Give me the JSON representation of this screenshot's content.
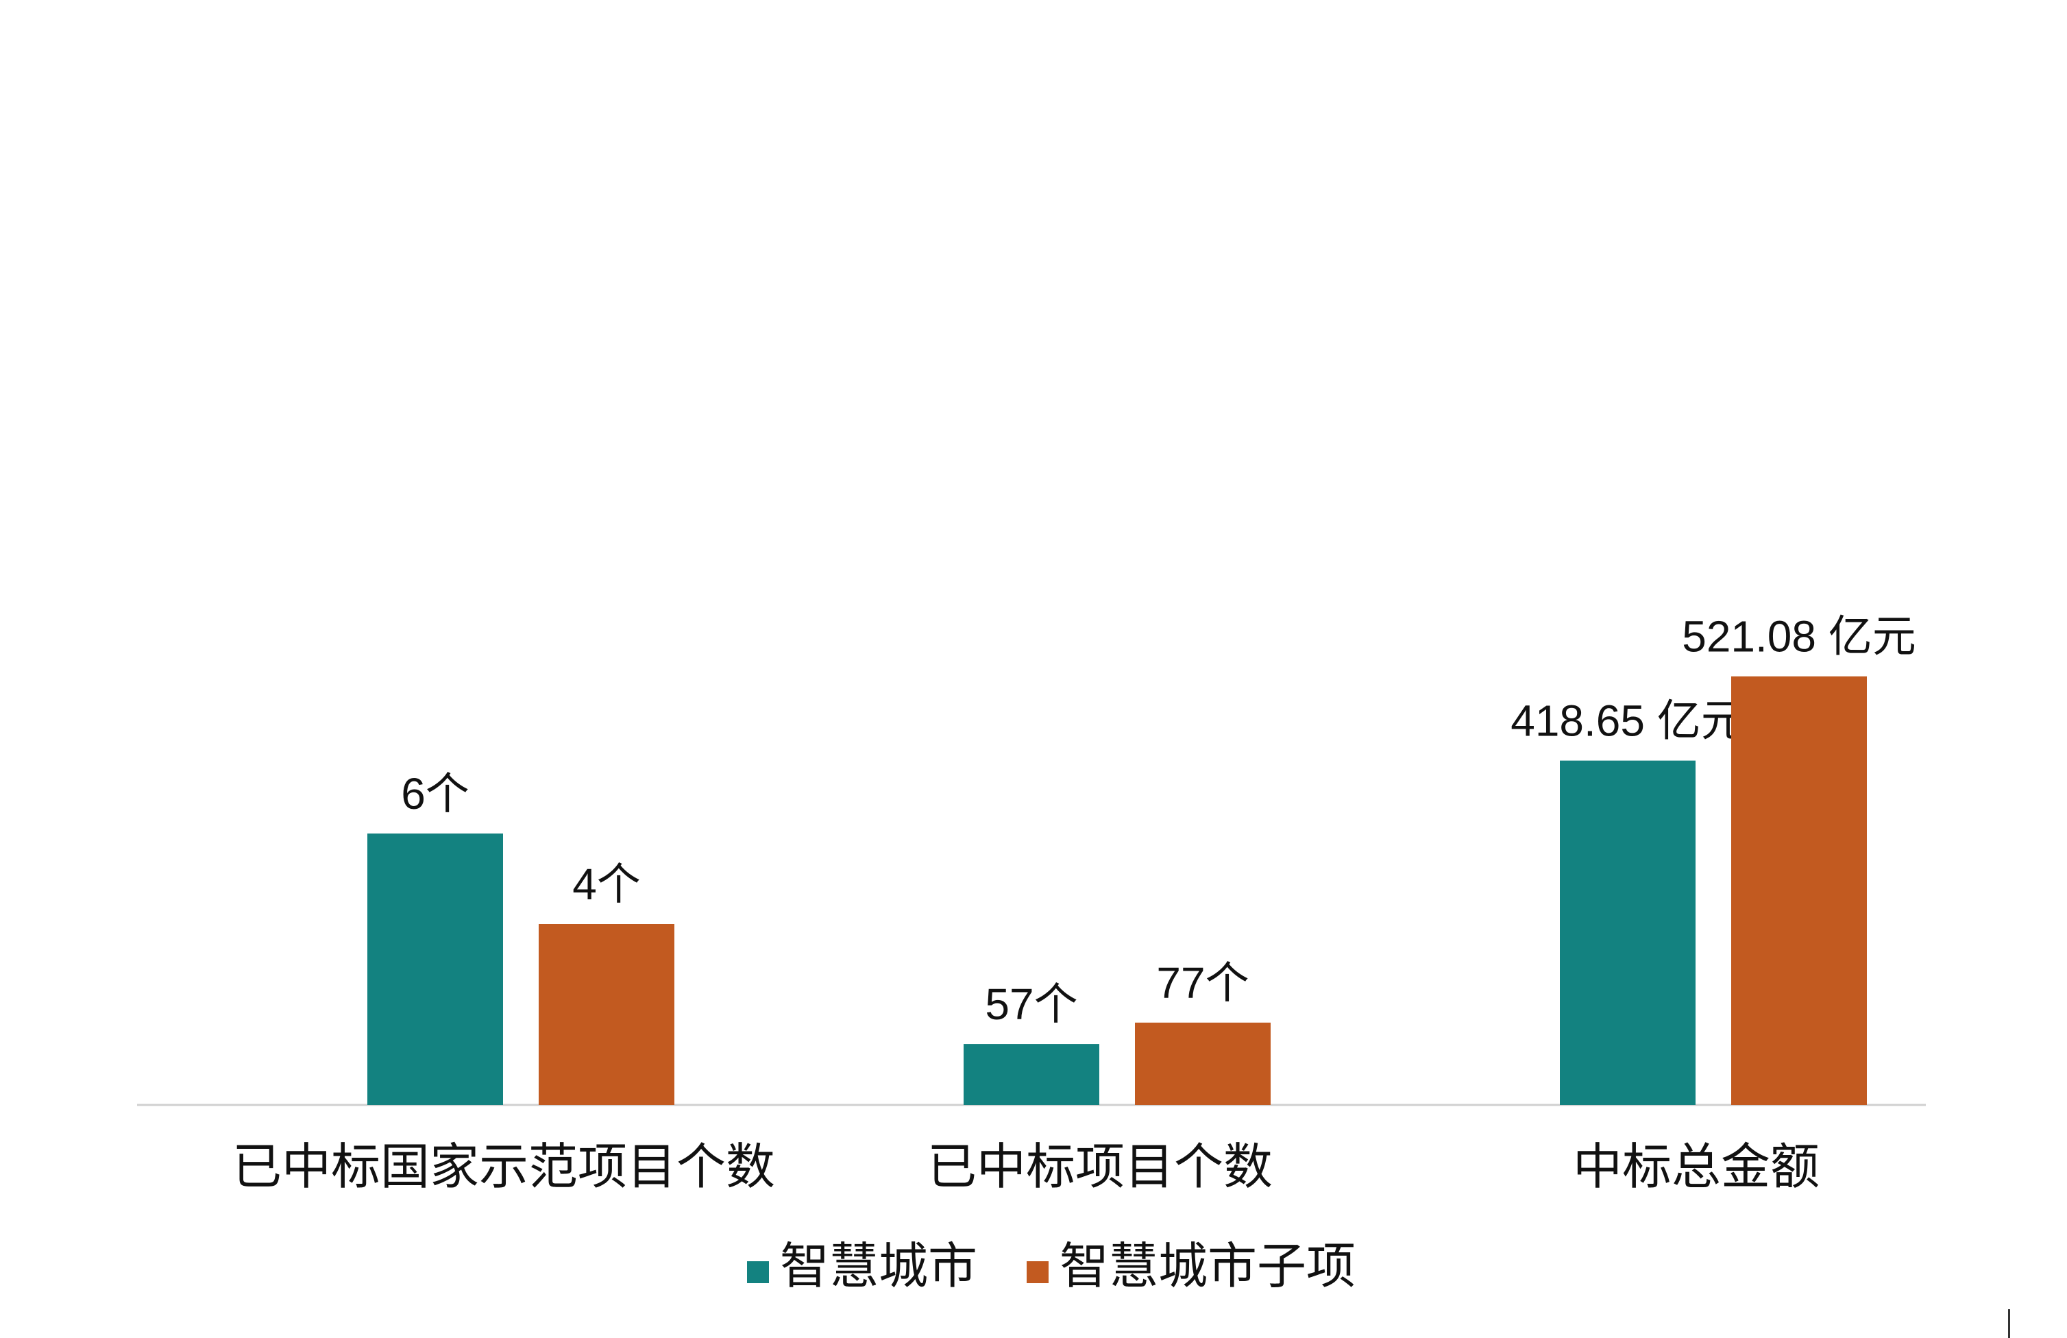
{
  "chart_data": {
    "type": "bar",
    "title": "",
    "xlabel": "",
    "ylabel": "",
    "categories": [
      "已中标国家示范项目个数",
      "已中标项目个数",
      "中标总金额"
    ],
    "series": [
      {
        "name": "智慧城市",
        "color": "#138280",
        "values": [
          6,
          57,
          418.65
        ],
        "labels": [
          "6个",
          "57个",
          "418.65 亿元"
        ]
      },
      {
        "name": "智慧城市子项",
        "color": "#c25a20",
        "values": [
          4,
          77,
          521.08
        ],
        "labels": [
          "4个",
          "77个",
          "521.08 亿元"
        ]
      }
    ],
    "bar_scale": [
      [
        55,
        6,
        4
      ],
      [
        1.3,
        57,
        77
      ],
      [
        1.0,
        418.65,
        521.08
      ]
    ],
    "legend_position": "bottom-center",
    "grid": false,
    "axis_color": "#d0d0d0",
    "text_color": "#111111"
  }
}
